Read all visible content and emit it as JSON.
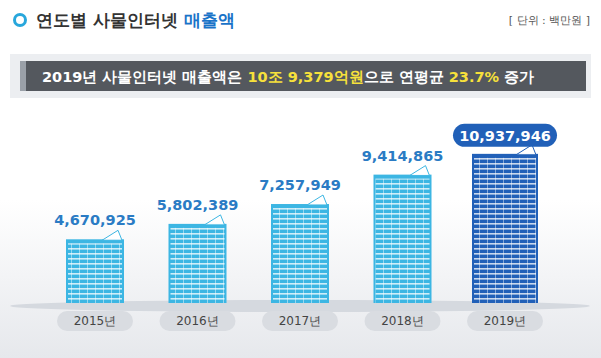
{
  "chart_data": {
    "type": "bar",
    "title": [
      {
        "text": "연도별 사물인터넷 ",
        "color": "#333333"
      },
      {
        "text": "매출액",
        "color": "#1a73c8"
      }
    ],
    "subtitle": [
      {
        "text": "2019년 사물인터넷 매출액은 ",
        "color": "#ffffff"
      },
      {
        "text": "10조 9,379억원",
        "color": "#f7e13b"
      },
      {
        "text": "으로 연평균 ",
        "color": "#ffffff"
      },
      {
        "text": "23.7%",
        "color": "#f7e13b"
      },
      {
        "text": " 증가",
        "color": "#ffffff"
      }
    ],
    "annotations": [
      "[ 단위 : 백만원 ]"
    ],
    "categories": [
      "2015년",
      "2016년",
      "2017년",
      "2018년",
      "2019년"
    ],
    "values": [
      4670925,
      5802389,
      7257949,
      9414865,
      10937946
    ],
    "value_labels": [
      "4,670,925",
      "5,802,389",
      "7,257,949",
      "9,414,865",
      "10,937,946"
    ],
    "colors": [
      "#3cb6e3",
      "#3cb6e3",
      "#3cb6e3",
      "#3cb6e3",
      "#2160b8"
    ],
    "ylim": [
      0,
      11000000
    ],
    "tick_labels": false,
    "data_labels": true,
    "grid": false
  }
}
